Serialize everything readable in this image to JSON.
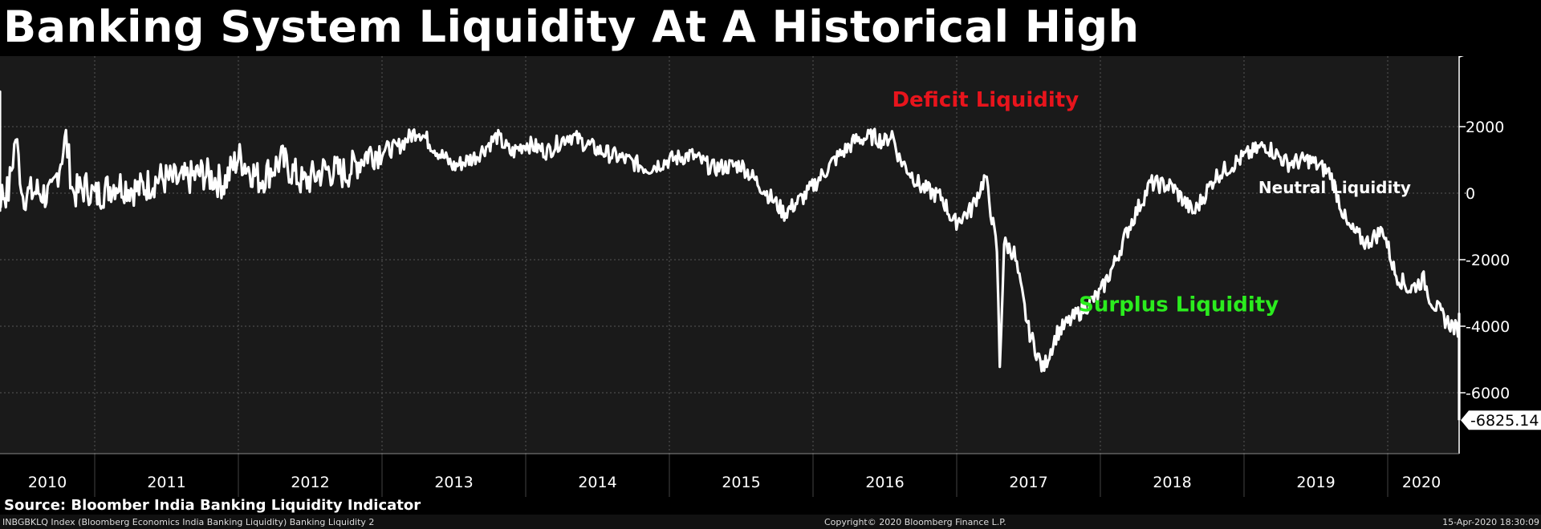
{
  "title": "Banking System Liquidity At A Historical High",
  "source": "Source: Bloomber India Banking Liquidity Indicator",
  "footer": {
    "ticker": "INBGBKLQ Index (Bloomberg Economics India Banking Liquidity) Banking Liquidity 2",
    "copyright": "Copyright© 2020 Bloomberg Finance L.P.",
    "timestamp": "15-Apr-2020 18:30:09"
  },
  "colors": {
    "background": "#000000",
    "plot_background": "#1a1a1a",
    "line": "#ffffff",
    "deficit": "#e8141c",
    "surplus": "#2bec1e"
  },
  "chart_data": {
    "type": "line",
    "title": "Banking System Liquidity At A Historical High",
    "x_tick_labels": [
      "2010",
      "2011",
      "2012",
      "2013",
      "2014",
      "2015",
      "2016",
      "2017",
      "2018",
      "2019",
      "2020"
    ],
    "y_ticks": [
      2000,
      0,
      -2000,
      -4000,
      -6000
    ],
    "y_tick_labels": [
      "2000",
      "0",
      "-2000",
      "-4000",
      "-6000"
    ],
    "ylim": [
      -7800,
      4000
    ],
    "xlim": [
      2009.75,
      2020.2
    ],
    "y_axis_side": "right",
    "grid": true,
    "last_value": -6825.14,
    "last_value_label": "-6825.14",
    "annotations": [
      {
        "text": "Deficit Liquidity",
        "x": 2016.55,
        "y": 2600,
        "color": "deficit"
      },
      {
        "text": "Surplus Liquidity",
        "x": 2017.85,
        "y": -3550,
        "color": "surplus"
      },
      {
        "text": "Neutral Liquidity",
        "x": 2019.1,
        "y": 0,
        "color": "white",
        "clipped": true
      }
    ],
    "series": [
      {
        "values": [
          [
            2009.75,
            2900
          ],
          [
            2009.85,
            2950
          ],
          [
            2009.92,
            3050
          ],
          [
            2009.97,
            2900
          ],
          [
            2010.0,
            100
          ],
          [
            2010.1,
            -100
          ],
          [
            2010.2,
            0
          ],
          [
            2010.3,
            -150
          ],
          [
            2010.4,
            50
          ],
          [
            2010.45,
            1700
          ],
          [
            2010.5,
            -50
          ],
          [
            2010.6,
            50
          ],
          [
            2010.7,
            -100
          ],
          [
            2010.8,
            1650
          ],
          [
            2010.85,
            0
          ],
          [
            2010.95,
            200
          ],
          [
            2011.0,
            -100
          ],
          [
            2011.15,
            300
          ],
          [
            2011.3,
            100
          ],
          [
            2011.45,
            450
          ],
          [
            2011.6,
            350
          ],
          [
            2011.75,
            600
          ],
          [
            2011.9,
            300
          ],
          [
            2012.0,
            1100
          ],
          [
            2012.15,
            400
          ],
          [
            2012.3,
            1000
          ],
          [
            2012.45,
            300
          ],
          [
            2012.6,
            700
          ],
          [
            2012.75,
            600
          ],
          [
            2012.9,
            1200
          ],
          [
            2013.0,
            1300
          ],
          [
            2013.1,
            1350
          ],
          [
            2013.25,
            1900
          ],
          [
            2013.4,
            1200
          ],
          [
            2013.5,
            800
          ],
          [
            2013.65,
            1100
          ],
          [
            2013.8,
            1700
          ],
          [
            2013.9,
            1200
          ],
          [
            2014.0,
            1500
          ],
          [
            2014.15,
            1250
          ],
          [
            2014.3,
            1750
          ],
          [
            2014.5,
            1300
          ],
          [
            2014.7,
            1000
          ],
          [
            2014.85,
            750
          ],
          [
            2015.0,
            1000
          ],
          [
            2015.15,
            1150
          ],
          [
            2015.3,
            750
          ],
          [
            2015.5,
            850
          ],
          [
            2015.65,
            150
          ],
          [
            2015.8,
            -600
          ],
          [
            2015.95,
            -50
          ],
          [
            2016.15,
            1000
          ],
          [
            2016.3,
            1600
          ],
          [
            2016.42,
            1700
          ],
          [
            2016.5,
            1550
          ],
          [
            2016.55,
            1800
          ],
          [
            2016.6,
            1050
          ],
          [
            2016.75,
            200
          ],
          [
            2016.9,
            -150
          ],
          [
            2016.98,
            -900
          ],
          [
            2017.1,
            -500
          ],
          [
            2017.2,
            500
          ],
          [
            2017.28,
            -1700
          ],
          [
            2017.3,
            -5200
          ],
          [
            2017.33,
            -1500
          ],
          [
            2017.4,
            -1800
          ],
          [
            2017.5,
            -4100
          ],
          [
            2017.6,
            -5300
          ],
          [
            2017.7,
            -4200
          ],
          [
            2017.8,
            -3800
          ],
          [
            2017.9,
            -3400
          ],
          [
            2018.0,
            -3000
          ],
          [
            2018.1,
            -2100
          ],
          [
            2018.2,
            -1000
          ],
          [
            2018.35,
            300
          ],
          [
            2018.5,
            200
          ],
          [
            2018.65,
            -600
          ],
          [
            2018.8,
            500
          ],
          [
            2019.0,
            1100
          ],
          [
            2019.15,
            1450
          ],
          [
            2019.3,
            900
          ],
          [
            2019.45,
            1000
          ],
          [
            2019.6,
            600
          ],
          [
            2019.72,
            -1000
          ],
          [
            2019.85,
            -1500
          ],
          [
            2019.97,
            -1100
          ],
          [
            2020.05,
            -2400
          ],
          [
            2020.15,
            -2900
          ],
          [
            2020.25,
            -2600
          ],
          [
            2020.3,
            -3200
          ],
          [
            2020.4,
            -3800
          ],
          [
            2020.48,
            -4100
          ],
          [
            2020.55,
            -3700
          ],
          [
            2020.6,
            -4400
          ],
          [
            2020.63,
            -6500
          ],
          [
            2020.66,
            -6825.14
          ]
        ]
      }
    ]
  }
}
